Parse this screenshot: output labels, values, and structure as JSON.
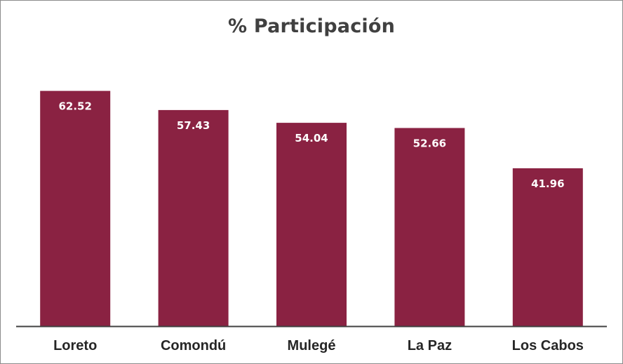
{
  "chart_data": {
    "type": "bar",
    "title": "% Participación",
    "categories": [
      "Loreto",
      "Comondú",
      "Mulegé",
      "La Paz",
      "Los Cabos"
    ],
    "values": [
      62.52,
      57.43,
      54.04,
      52.66,
      41.96
    ],
    "data_labels": [
      "62.52",
      "57.43",
      "54.04",
      "52.66",
      "41.96"
    ],
    "xlabel": "",
    "ylabel": "",
    "ylim": [
      0,
      63
    ],
    "grid": false,
    "legend": "none",
    "colors": {
      "bar": "#8a2242",
      "axis": "#404040",
      "title": "#404040",
      "label": "#ffffff",
      "category": "#262626"
    }
  }
}
